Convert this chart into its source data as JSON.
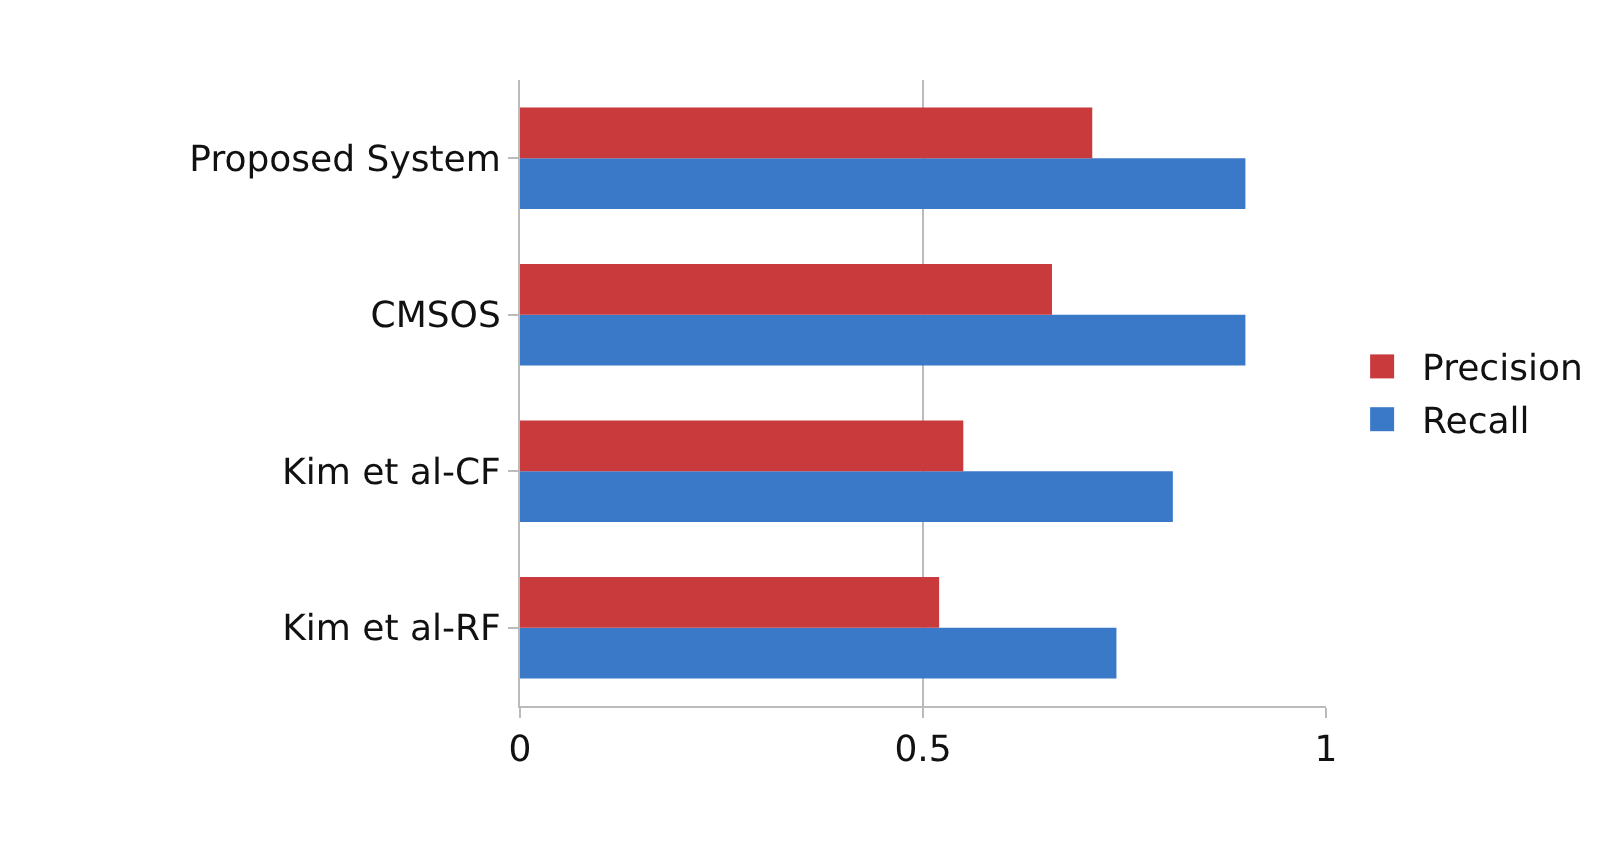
{
  "chart_data": {
    "type": "bar",
    "orientation": "horizontal",
    "categories": [
      "Proposed System",
      "CMSOS",
      "Kim et al-CF",
      "Kim et al-RF"
    ],
    "series": [
      {
        "name": "Precision",
        "color": "#c83a3c",
        "values": [
          0.71,
          0.66,
          0.55,
          0.52
        ]
      },
      {
        "name": "Recall",
        "color": "#3a78c8",
        "values": [
          0.9,
          0.9,
          0.81,
          0.74
        ]
      }
    ],
    "xlim": [
      0,
      1
    ],
    "xticks": [
      0,
      0.5,
      1
    ],
    "grid": "x",
    "legend": "right"
  }
}
